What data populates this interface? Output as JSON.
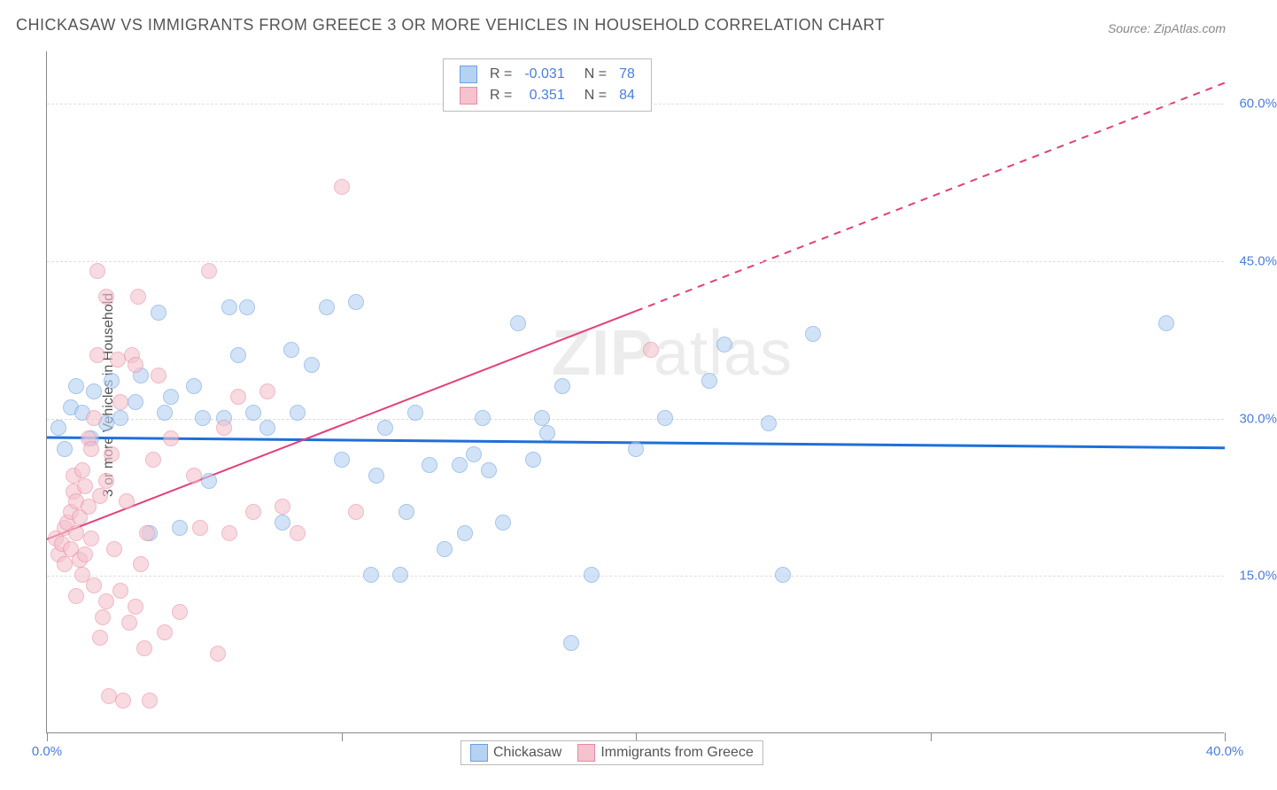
{
  "title": "CHICKASAW VS IMMIGRANTS FROM GREECE 3 OR MORE VEHICLES IN HOUSEHOLD CORRELATION CHART",
  "source": "Source: ZipAtlas.com",
  "y_axis_label": "3 or more Vehicles in Household",
  "watermark_a": "ZIP",
  "watermark_b": "atlas",
  "chart": {
    "type": "scatter",
    "xlim": [
      0,
      40
    ],
    "ylim": [
      0,
      65
    ],
    "x_ticks": [
      0,
      10,
      20,
      30,
      40
    ],
    "x_tick_labels": [
      "0.0%",
      "",
      "",
      "",
      "40.0%"
    ],
    "y_ticks": [
      15,
      30,
      45,
      60
    ],
    "y_tick_labels": [
      "15.0%",
      "30.0%",
      "45.0%",
      "60.0%"
    ],
    "background_color": "#ffffff",
    "grid_color": "#dddddd",
    "axis_color": "#888888",
    "tick_label_color": "#4a7de0",
    "marker_radius": 9,
    "series": [
      {
        "name": "Chickasaw",
        "fill": "#b6d2f2",
        "stroke": "#6aa0e0",
        "opacity": 0.6,
        "r_value": "-0.031",
        "n_value": "78",
        "trend": {
          "y_at_x0": 28.2,
          "y_at_x40": 27.2,
          "color": "#1f6fd8",
          "width": 3,
          "dash_after_x": 40
        },
        "points": [
          [
            0.4,
            29
          ],
          [
            0.6,
            27
          ],
          [
            0.8,
            31
          ],
          [
            1.0,
            33
          ],
          [
            1.2,
            30.5
          ],
          [
            1.5,
            28
          ],
          [
            1.6,
            32.5
          ],
          [
            2.0,
            29.5
          ],
          [
            2.2,
            33.5
          ],
          [
            2.5,
            30
          ],
          [
            3.0,
            31.5
          ],
          [
            3.2,
            34
          ],
          [
            3.5,
            19
          ],
          [
            3.8,
            40
          ],
          [
            4.0,
            30.5
          ],
          [
            4.2,
            32
          ],
          [
            4.5,
            19.5
          ],
          [
            5.0,
            33
          ],
          [
            5.3,
            30
          ],
          [
            5.5,
            24
          ],
          [
            6.0,
            30
          ],
          [
            6.2,
            40.5
          ],
          [
            6.5,
            36
          ],
          [
            6.8,
            40.5
          ],
          [
            7.0,
            30.5
          ],
          [
            7.5,
            29
          ],
          [
            8.0,
            20
          ],
          [
            8.3,
            36.5
          ],
          [
            8.5,
            30.5
          ],
          [
            9.0,
            35
          ],
          [
            9.5,
            40.5
          ],
          [
            10.0,
            26
          ],
          [
            10.5,
            41
          ],
          [
            11.0,
            15
          ],
          [
            11.2,
            24.5
          ],
          [
            11.5,
            29
          ],
          [
            12.0,
            15
          ],
          [
            12.2,
            21
          ],
          [
            12.5,
            30.5
          ],
          [
            13.0,
            25.5
          ],
          [
            13.5,
            17.5
          ],
          [
            14.0,
            25.5
          ],
          [
            14.2,
            19
          ],
          [
            14.5,
            26.5
          ],
          [
            14.8,
            30
          ],
          [
            15.0,
            25
          ],
          [
            15.5,
            20
          ],
          [
            16.0,
            39
          ],
          [
            16.5,
            26
          ],
          [
            16.8,
            30
          ],
          [
            17.0,
            28.5
          ],
          [
            17.5,
            33
          ],
          [
            17.8,
            8.5
          ],
          [
            18.5,
            15
          ],
          [
            20.0,
            27
          ],
          [
            21.0,
            30
          ],
          [
            22.5,
            33.5
          ],
          [
            23.0,
            37
          ],
          [
            24.5,
            29.5
          ],
          [
            25.0,
            15
          ],
          [
            26.0,
            38
          ],
          [
            38.0,
            39
          ]
        ]
      },
      {
        "name": "Immigrants from Greece",
        "fill": "#f5c2ce",
        "stroke": "#e88ba3",
        "opacity": 0.6,
        "r_value": "0.351",
        "n_value": "84",
        "trend": {
          "y_at_x0": 18.5,
          "y_at_x40": 62,
          "color": "#e53e7b",
          "width": 2,
          "dash_after_x": 20
        },
        "points": [
          [
            0.3,
            18.5
          ],
          [
            0.4,
            17
          ],
          [
            0.5,
            18
          ],
          [
            0.6,
            19.5
          ],
          [
            0.6,
            16
          ],
          [
            0.7,
            20
          ],
          [
            0.8,
            21
          ],
          [
            0.8,
            17.5
          ],
          [
            0.9,
            23
          ],
          [
            0.9,
            24.5
          ],
          [
            1.0,
            22
          ],
          [
            1.0,
            19
          ],
          [
            1.0,
            13
          ],
          [
            1.1,
            16.5
          ],
          [
            1.1,
            20.5
          ],
          [
            1.2,
            15
          ],
          [
            1.2,
            25
          ],
          [
            1.3,
            23.5
          ],
          [
            1.3,
            17
          ],
          [
            1.4,
            21.5
          ],
          [
            1.4,
            28
          ],
          [
            1.5,
            27
          ],
          [
            1.5,
            18.5
          ],
          [
            1.6,
            14
          ],
          [
            1.6,
            30
          ],
          [
            1.7,
            44
          ],
          [
            1.7,
            36
          ],
          [
            1.8,
            22.5
          ],
          [
            1.8,
            9
          ],
          [
            1.9,
            11
          ],
          [
            2.0,
            41.5
          ],
          [
            2.0,
            24
          ],
          [
            2.0,
            12.5
          ],
          [
            2.1,
            3.5
          ],
          [
            2.2,
            26.5
          ],
          [
            2.3,
            17.5
          ],
          [
            2.4,
            35.5
          ],
          [
            2.5,
            31.5
          ],
          [
            2.5,
            13.5
          ],
          [
            2.6,
            3.0
          ],
          [
            2.7,
            22
          ],
          [
            2.8,
            10.5
          ],
          [
            2.9,
            36
          ],
          [
            3.0,
            35
          ],
          [
            3.0,
            12
          ],
          [
            3.1,
            41.5
          ],
          [
            3.2,
            16
          ],
          [
            3.3,
            8
          ],
          [
            3.4,
            19
          ],
          [
            3.5,
            3.0
          ],
          [
            3.6,
            26
          ],
          [
            3.8,
            34
          ],
          [
            4.0,
            9.5
          ],
          [
            4.2,
            28
          ],
          [
            4.5,
            11.5
          ],
          [
            5.0,
            24.5
          ],
          [
            5.2,
            19.5
          ],
          [
            5.5,
            44
          ],
          [
            5.8,
            7.5
          ],
          [
            6.0,
            29
          ],
          [
            6.2,
            19
          ],
          [
            6.5,
            32
          ],
          [
            7.0,
            21
          ],
          [
            7.5,
            32.5
          ],
          [
            8.0,
            21.5
          ],
          [
            8.5,
            19
          ],
          [
            10.0,
            52
          ],
          [
            10.5,
            21
          ],
          [
            20.5,
            36.5
          ]
        ]
      }
    ]
  },
  "legend_stats": {
    "r_label": "R =",
    "n_label": "N ="
  },
  "legend_bottom": {
    "items": [
      {
        "label": "Chickasaw",
        "fill": "#b6d2f2",
        "stroke": "#6aa0e0"
      },
      {
        "label": "Immigrants from Greece",
        "fill": "#f5c2ce",
        "stroke": "#e88ba3"
      }
    ]
  }
}
